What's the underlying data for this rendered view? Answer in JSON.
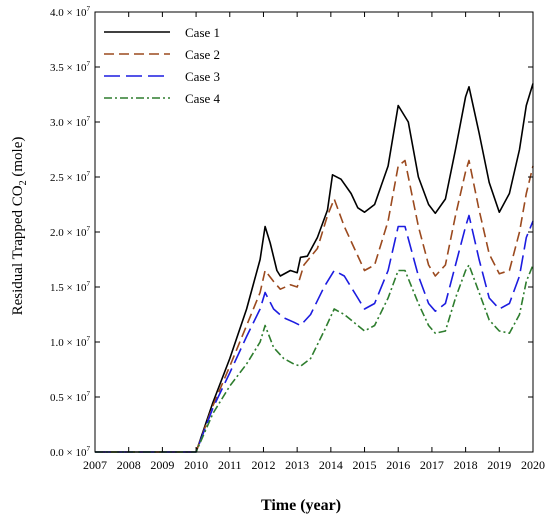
{
  "chart_data": {
    "type": "line",
    "xlabel": "Time (year)",
    "ylabel_parts": [
      "Residual Trapped CO",
      "2",
      " (mole)"
    ],
    "xlim": [
      2007,
      2020
    ],
    "ylim": [
      0,
      40000000.0
    ],
    "x_ticks": [
      2007,
      2008,
      2009,
      2010,
      2011,
      2012,
      2013,
      2014,
      2015,
      2016,
      2017,
      2018,
      2019,
      2020
    ],
    "x_tick_labels": [
      "2007",
      "2008",
      "2009",
      "2010",
      "2011",
      "2012",
      "2013",
      "2014",
      "2015",
      "2016",
      "2017",
      "2018",
      "2019",
      "2020"
    ],
    "y_ticks": [
      0,
      5000000,
      10000000,
      15000000,
      20000000,
      25000000,
      30000000,
      35000000,
      40000000
    ],
    "y_tick_labels": [
      {
        "mantissa": "0.0",
        "exponent": "7"
      },
      {
        "mantissa": "0.5",
        "exponent": "7"
      },
      {
        "mantissa": "1.0",
        "exponent": "7"
      },
      {
        "mantissa": "1.5",
        "exponent": "7"
      },
      {
        "mantissa": "2.0",
        "exponent": "7"
      },
      {
        "mantissa": "2.5",
        "exponent": "7"
      },
      {
        "mantissa": "3.0",
        "exponent": "7"
      },
      {
        "mantissa": "3.5",
        "exponent": "7"
      },
      {
        "mantissa": "4.0",
        "exponent": "7"
      }
    ],
    "legend_position": "top-left",
    "grid": false,
    "series": [
      {
        "name": "Case 1",
        "color": "#000000",
        "dash": "solid",
        "x": [
          2007,
          2010,
          2010.5,
          2011,
          2011.5,
          2011.9,
          2012.05,
          2012.2,
          2012.4,
          2012.5,
          2012.8,
          2013.0,
          2013.1,
          2013.3,
          2013.6,
          2013.9,
          2014.05,
          2014.3,
          2014.6,
          2014.8,
          2015.0,
          2015.3,
          2015.7,
          2016.0,
          2016.3,
          2016.6,
          2016.9,
          2017.1,
          2017.4,
          2017.7,
          2018.0,
          2018.1,
          2018.4,
          2018.7,
          2019.0,
          2019.3,
          2019.6,
          2019.8,
          2020.0
        ],
        "y": [
          0,
          0,
          4500000,
          8500000,
          13000000,
          17500000,
          20500000,
          19000000,
          16500000,
          16000000,
          16500000,
          16300000,
          17700000,
          17800000,
          19500000,
          22000000,
          25200000,
          24800000,
          23500000,
          22200000,
          21800000,
          22500000,
          26000000,
          31500000,
          30000000,
          25000000,
          22500000,
          21700000,
          23000000,
          27500000,
          32300000,
          33200000,
          29000000,
          24500000,
          21800000,
          23500000,
          27500000,
          31500000,
          33500000
        ]
      },
      {
        "name": "Case 2",
        "color": "#9b4a1f",
        "dash": "10,5",
        "x": [
          2007,
          2010,
          2010.5,
          2011,
          2011.5,
          2011.9,
          2012.05,
          2012.3,
          2012.5,
          2012.8,
          2013.0,
          2013.2,
          2013.6,
          2013.9,
          2014.1,
          2014.4,
          2014.7,
          2015.0,
          2015.3,
          2015.7,
          2016.0,
          2016.2,
          2016.6,
          2016.9,
          2017.1,
          2017.4,
          2017.7,
          2018.0,
          2018.1,
          2018.4,
          2018.7,
          2019.0,
          2019.3,
          2019.6,
          2019.8,
          2020.0
        ],
        "y": [
          0,
          0,
          4200000,
          7800000,
          11500000,
          14500000,
          16500000,
          15500000,
          14800000,
          15200000,
          15000000,
          17000000,
          18500000,
          21500000,
          23000000,
          20500000,
          18500000,
          16500000,
          17000000,
          21000000,
          26000000,
          26500000,
          20500000,
          17000000,
          16000000,
          17000000,
          21500000,
          25500000,
          26500000,
          22000000,
          18000000,
          16200000,
          16500000,
          20000000,
          23500000,
          26000000
        ]
      },
      {
        "name": "Case 3",
        "color": "#1c1ce0",
        "dash": "16,6",
        "x": [
          2007,
          2010,
          2010.5,
          2011,
          2011.5,
          2011.9,
          2012.05,
          2012.3,
          2012.6,
          2012.9,
          2013.1,
          2013.4,
          2013.8,
          2014.1,
          2014.4,
          2014.8,
          2015.0,
          2015.3,
          2015.7,
          2016.0,
          2016.2,
          2016.6,
          2016.9,
          2017.1,
          2017.4,
          2017.7,
          2018.0,
          2018.1,
          2018.4,
          2018.7,
          2019.0,
          2019.3,
          2019.6,
          2019.8,
          2020.0
        ],
        "y": [
          0,
          0,
          4000000,
          7200000,
          10500000,
          13000000,
          14500000,
          13000000,
          12200000,
          11800000,
          11500000,
          12500000,
          15000000,
          16500000,
          16000000,
          14000000,
          13000000,
          13500000,
          16500000,
          20500000,
          20500000,
          16000000,
          13500000,
          12800000,
          13500000,
          17000000,
          20500000,
          21500000,
          17500000,
          14000000,
          13000000,
          13500000,
          16000000,
          19500000,
          21000000
        ]
      },
      {
        "name": "Case 4",
        "color": "#2e7d2e",
        "dash": "8,3,2,3",
        "x": [
          2007,
          2010,
          2010.5,
          2011,
          2011.5,
          2011.9,
          2012.05,
          2012.3,
          2012.6,
          2012.9,
          2013.1,
          2013.4,
          2013.8,
          2014.1,
          2014.4,
          2014.8,
          2015.0,
          2015.3,
          2015.7,
          2016.0,
          2016.2,
          2016.6,
          2016.9,
          2017.1,
          2017.4,
          2017.7,
          2018.0,
          2018.1,
          2018.4,
          2018.7,
          2019.0,
          2019.3,
          2019.6,
          2019.8,
          2020.0
        ],
        "y": [
          0,
          0,
          3500000,
          6000000,
          8000000,
          10000000,
          11500000,
          9500000,
          8500000,
          8000000,
          7800000,
          8500000,
          11000000,
          13000000,
          12500000,
          11500000,
          11000000,
          11500000,
          14000000,
          16500000,
          16500000,
          13500000,
          11500000,
          10800000,
          11000000,
          14000000,
          16500000,
          17000000,
          14500000,
          12000000,
          11000000,
          10800000,
          12500000,
          15500000,
          17000000
        ]
      }
    ]
  }
}
